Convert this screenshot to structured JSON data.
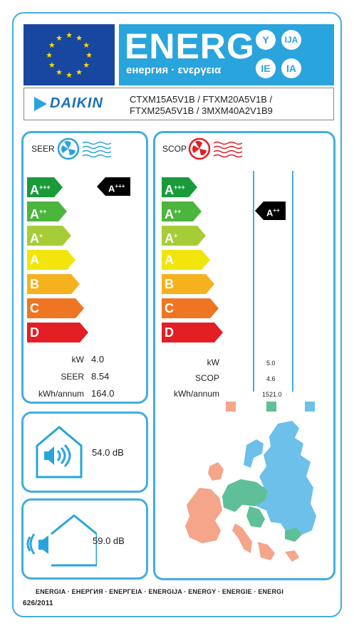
{
  "header": {
    "energy_word": "ENERG",
    "energy_sub": "енергия · ενεργεια",
    "suffixes": [
      "Y",
      "IJA",
      "IE",
      "IA"
    ]
  },
  "brand": {
    "logo": "DAIKIN",
    "models_line1": "CTXM15A5V1B / FTXM20A5V1B /",
    "models_line2": "FTXM25A5V1B / 3MXM40A2V1B9"
  },
  "cooling": {
    "title": "SEER",
    "classes": [
      "A",
      "A",
      "A",
      "A",
      "B",
      "C",
      "D"
    ],
    "class_sups": [
      "+++",
      "++",
      "+",
      "",
      "",
      "",
      ""
    ],
    "rating_main": "A",
    "rating_sup": "+++",
    "labels": [
      "kW",
      "SEER",
      "kWh/annum"
    ],
    "values": [
      "4.0",
      "8.54",
      "164.0"
    ]
  },
  "heating": {
    "title": "SCOP",
    "classes": [
      "A",
      "A",
      "A",
      "A",
      "B",
      "C",
      "D"
    ],
    "class_sups": [
      "+++",
      "++",
      "+",
      "",
      "",
      "",
      ""
    ],
    "rating_main": "A",
    "rating_sup": "++",
    "labels": [
      "kW",
      "SCOP",
      "kWh/annum"
    ],
    "values": [
      "5.0",
      "4.6",
      "1521.0"
    ]
  },
  "noise": {
    "indoor": "54.0 dB",
    "outdoor": "59.0 dB"
  },
  "footer": {
    "languages": "ENERGIA · ЕНЕРГИЯ · ΕΝΕΡΓΕΙΑ · ENERGIJA · ENERGY · ENERGIE · ENERGI",
    "regulation": "626/2011"
  },
  "colors": {
    "class_colors": [
      "#1a9a3a",
      "#4bb53d",
      "#a6cd38",
      "#f2e50d",
      "#f6b11e",
      "#ee7623",
      "#e31e24"
    ],
    "frame": "#41aee0",
    "zone_colors": [
      "#f4a58a",
      "#5fbf96",
      "#6cc0ea"
    ]
  }
}
